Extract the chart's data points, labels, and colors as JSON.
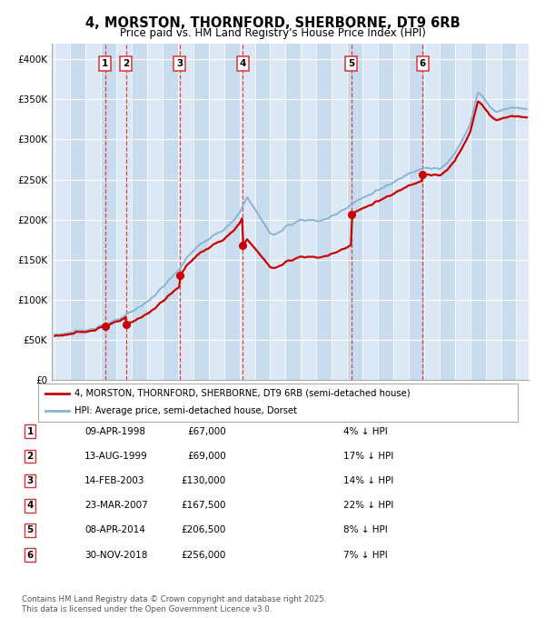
{
  "title": "4, MORSTON, THORNFORD, SHERBORNE, DT9 6RB",
  "subtitle": "Price paid vs. HM Land Registry's House Price Index (HPI)",
  "transactions": [
    {
      "num": 1,
      "price": 67000,
      "year_x": 1998.27
    },
    {
      "num": 2,
      "price": 69000,
      "year_x": 1999.62
    },
    {
      "num": 3,
      "price": 130000,
      "year_x": 2003.12
    },
    {
      "num": 4,
      "price": 167500,
      "year_x": 2007.22
    },
    {
      "num": 5,
      "price": 206500,
      "year_x": 2014.27
    },
    {
      "num": 6,
      "price": 256000,
      "year_x": 2018.91
    }
  ],
  "legend_line1": "4, MORSTON, THORNFORD, SHERBORNE, DT9 6RB (semi-detached house)",
  "legend_line2": "HPI: Average price, semi-detached house, Dorset",
  "table_rows": [
    [
      "1",
      "09-APR-1998",
      "£67,000",
      "4% ↓ HPI"
    ],
    [
      "2",
      "13-AUG-1999",
      "£69,000",
      "17% ↓ HPI"
    ],
    [
      "3",
      "14-FEB-2003",
      "£130,000",
      "14% ↓ HPI"
    ],
    [
      "4",
      "23-MAR-2007",
      "£167,500",
      "22% ↓ HPI"
    ],
    [
      "5",
      "08-APR-2014",
      "£206,500",
      "8% ↓ HPI"
    ],
    [
      "6",
      "30-NOV-2018",
      "£256,000",
      "7% ↓ HPI"
    ]
  ],
  "footer": "Contains HM Land Registry data © Crown copyright and database right 2025.\nThis data is licensed under the Open Government Licence v3.0.",
  "hpi_color": "#8ab4d4",
  "price_color": "#cc0000",
  "vline_color": "#dd3333",
  "bg_light": "#dce8f5",
  "bg_dark": "#c8dced",
  "ylim": [
    0,
    420000
  ],
  "ytick_vals": [
    0,
    50000,
    100000,
    150000,
    200000,
    250000,
    300000,
    350000,
    400000
  ],
  "ytick_labels": [
    "£0",
    "£50K",
    "£100K",
    "£150K",
    "£200K",
    "£250K",
    "£300K",
    "£350K",
    "£400K"
  ],
  "xlim_start": 1994.8,
  "xlim_end": 2025.8,
  "hpi_anchors_t": [
    1995.0,
    1996.0,
    1997.0,
    1997.5,
    1998.0,
    1998.5,
    1999.0,
    1999.5,
    2000.0,
    2000.5,
    2001.0,
    2001.5,
    2002.0,
    2002.5,
    2003.0,
    2003.5,
    2004.0,
    2004.5,
    2005.0,
    2005.5,
    2006.0,
    2006.5,
    2007.0,
    2007.25,
    2007.5,
    2007.75,
    2008.0,
    2008.5,
    2009.0,
    2009.25,
    2009.5,
    2009.75,
    2010.0,
    2010.5,
    2011.0,
    2011.5,
    2012.0,
    2012.5,
    2013.0,
    2013.5,
    2014.0,
    2014.5,
    2015.0,
    2015.5,
    2016.0,
    2016.5,
    2017.0,
    2017.5,
    2018.0,
    2018.5,
    2019.0,
    2019.5,
    2020.0,
    2020.5,
    2021.0,
    2021.5,
    2022.0,
    2022.25,
    2022.5,
    2022.75,
    2023.0,
    2023.25,
    2023.5,
    2023.75,
    2024.0,
    2024.5,
    2025.0,
    2025.5
  ],
  "hpi_anchors_v": [
    57000,
    59000,
    62000,
    65000,
    68000,
    71000,
    74000,
    79000,
    85000,
    91000,
    98000,
    106000,
    116000,
    126000,
    136000,
    150000,
    162000,
    170000,
    176000,
    182000,
    188000,
    196000,
    208000,
    218000,
    228000,
    222000,
    213000,
    198000,
    183000,
    182000,
    183000,
    186000,
    191000,
    196000,
    200000,
    200000,
    198000,
    200000,
    204000,
    210000,
    216000,
    222000,
    227000,
    232000,
    237000,
    241000,
    246000,
    252000,
    258000,
    262000,
    265000,
    264000,
    263000,
    270000,
    282000,
    300000,
    320000,
    340000,
    358000,
    355000,
    348000,
    342000,
    337000,
    335000,
    336000,
    340000,
    340000,
    338000
  ]
}
